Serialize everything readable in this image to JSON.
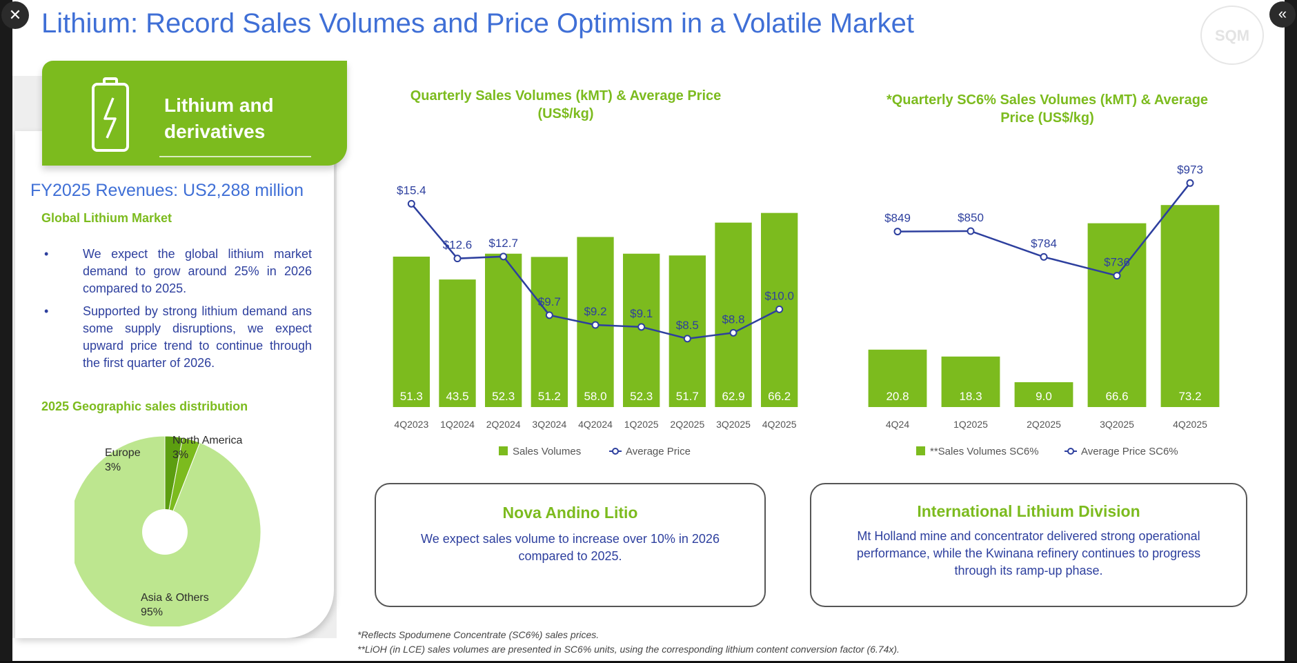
{
  "title": "Lithium: Record Sales Volumes and Price Optimism in a Volatile Market",
  "logo_text": "SQM",
  "controls": {
    "close_glyph": "✕",
    "collapse_glyph": "«"
  },
  "left_panel": {
    "header_label": "Lithium and derivatives",
    "revenue": "FY2025 Revenues: US2,288 million",
    "global_market_heading": "Global Lithium Market",
    "bullets": [
      "We expect the global lithium market demand to grow around 25% in 2026 compared to 2025.",
      "Supported by strong lithium demand ans some supply disruptions, we expect upward price trend to continue through the first quarter of 2026."
    ],
    "geo_heading": "2025 Geographic sales distribution"
  },
  "colors": {
    "title_blue": "#3f6fd6",
    "green": "#7cbb1e",
    "navy": "#2d3f9e",
    "pie_light": "#bde68f",
    "pie_europe": "#5c9e10",
    "pie_na": "#7cbb1e"
  },
  "boxes": {
    "nova": {
      "title": "Nova Andino Litio",
      "text": "We expect sales volume to increase over 10%  in 2026 compared to 2025."
    },
    "international": {
      "title": "International Lithium Division",
      "text": "Mt Holland mine and concentrator delivered strong operational performance, while the Kwinana refinery continues to progress through its ramp-up phase."
    }
  },
  "footnotes": [
    "*Reflects Spodumene Concentrate (SC6%) sales prices.",
    "**LiOH (in LCE) sales volumes are presented in SC6% units, using the corresponding lithium content conversion factor (6.74x)."
  ],
  "chart_data": [
    {
      "type": "bar",
      "title": "Quarterly Sales Volumes (kMT) & Average Price (US$/kg)",
      "categories": [
        "4Q2023",
        "1Q2024",
        "2Q2024",
        "3Q2024",
        "4Q2024",
        "1Q2025",
        "2Q2025",
        "3Q2025",
        "4Q2025"
      ],
      "series": [
        {
          "name": "Sales Volumes",
          "kind": "bar",
          "values": [
            51.3,
            43.5,
            52.3,
            51.2,
            58.0,
            52.3,
            51.7,
            62.9,
            66.2
          ],
          "labels": [
            "51.3",
            "43.5",
            "52.3",
            "51.2",
            "58.0",
            "52.3",
            "51.7",
            "62.9",
            "66.2"
          ]
        },
        {
          "name": "Average Price",
          "kind": "line",
          "values": [
            15.4,
            12.6,
            12.7,
            9.7,
            9.2,
            9.1,
            8.5,
            8.8,
            10.0
          ],
          "labels": [
            "$15.4",
            "$12.6",
            "$12.7",
            "$9.7",
            "$9.2",
            "$9.1",
            "$8.5",
            "$8.8",
            "$10.0"
          ]
        }
      ],
      "ylim_bars": [
        0,
        80
      ],
      "ylim_line": [
        5,
        17
      ],
      "legend": "bottom"
    },
    {
      "type": "bar",
      "title": "*Quarterly SC6% Sales Volumes (kMT) & Average Price (US$/kg)",
      "categories": [
        "4Q24",
        "1Q2025",
        "2Q2025",
        "3Q2025",
        "4Q2025"
      ],
      "series": [
        {
          "name": "**Sales Volumes SC6%",
          "kind": "bar",
          "values": [
            20.8,
            18.3,
            9.0,
            66.6,
            73.2
          ],
          "labels": [
            "20.8",
            "18.3",
            "9.0",
            "66.6",
            "73.2"
          ]
        },
        {
          "name": "Average Price SC6%",
          "kind": "line",
          "values": [
            849,
            850,
            784,
            736,
            973
          ],
          "labels": [
            "$849",
            "$850",
            "$784",
            "$736",
            "$973"
          ]
        }
      ],
      "ylim_bars": [
        0,
        85
      ],
      "ylim_line": [
        400,
        1000
      ],
      "legend": "bottom"
    },
    {
      "type": "pie",
      "title": "2025 Geographic sales distribution",
      "slices": [
        {
          "name": "Asia & Others",
          "value": 95,
          "label": "95%"
        },
        {
          "name": "Europe",
          "value": 3,
          "label": "3%"
        },
        {
          "name": "North America",
          "value": 3,
          "label": "3%"
        }
      ]
    }
  ]
}
